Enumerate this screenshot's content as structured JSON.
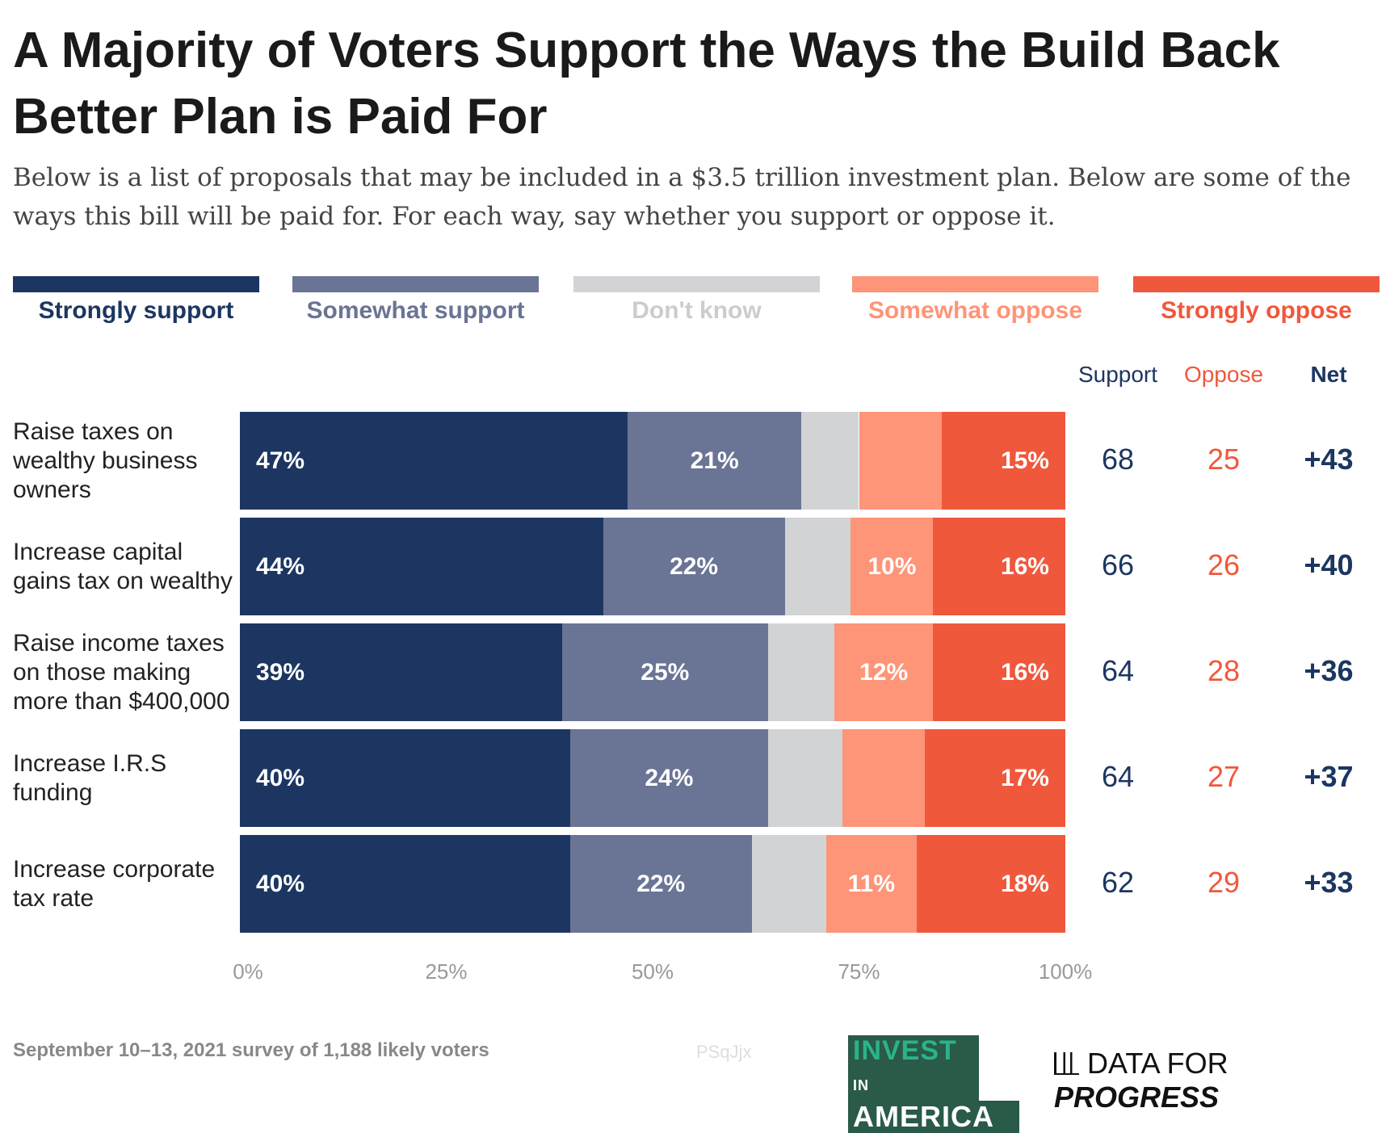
{
  "title": "A Majority of Voters Support the Ways the Build Back Better Plan is Paid For",
  "subtitle": "Below is a list of proposals that may be included in a $3.5 trillion investment plan. Below are some of the ways this bill will be paid for. For each way, say whether you support or oppose it.",
  "footer": "September 10–13, 2021 survey of 1,188 likely voters",
  "watermark": "PSqJjx",
  "logos": {
    "invest_in_america": "INVEST IN AMERICA",
    "data_for_progress": "DATA FOR PROGRESS"
  },
  "columns": {
    "support": "Support",
    "oppose": "Oppose",
    "net": "Net"
  },
  "chart_data": {
    "type": "bar",
    "orientation": "horizontal",
    "stacked": true,
    "legend_position": "top",
    "xlim": [
      0,
      100
    ],
    "xticks": [
      "0%",
      "25%",
      "50%",
      "75%",
      "100%"
    ],
    "categories": [
      "Raise taxes on wealthy business owners",
      "Increase capital gains tax on wealthy",
      "Raise income taxes on those making more than $400,000",
      "Increase I.R.S funding",
      "Increase corporate tax rate"
    ],
    "series": [
      {
        "name": "Strongly support",
        "color": "#1c3661",
        "values": [
          47,
          44,
          39,
          40,
          40
        ],
        "labels": [
          "47%",
          "44%",
          "39%",
          "40%",
          "40%"
        ]
      },
      {
        "name": "Somewhat support",
        "color": "#6a7494",
        "values": [
          21,
          22,
          25,
          24,
          22
        ],
        "labels": [
          "21%",
          "22%",
          "25%",
          "24%",
          "22%"
        ]
      },
      {
        "name": "Don't know",
        "color": "#d2d3d5",
        "values": [
          7,
          8,
          8,
          9,
          9
        ],
        "labels": [
          "",
          "",
          "",
          "",
          ""
        ]
      },
      {
        "name": "Somewhat oppose",
        "color": "#fe9478",
        "values": [
          10,
          10,
          12,
          10,
          11
        ],
        "labels": [
          "",
          "10%",
          "12%",
          "",
          "11%"
        ]
      },
      {
        "name": "Strongly oppose",
        "color": "#f0583c",
        "values": [
          15,
          16,
          16,
          17,
          18
        ],
        "labels": [
          "15%",
          "16%",
          "16%",
          "17%",
          "18%"
        ]
      }
    ],
    "table": {
      "support": [
        "68",
        "66",
        "64",
        "64",
        "62"
      ],
      "oppose": [
        "25",
        "26",
        "28",
        "27",
        "29"
      ],
      "net": [
        "+43",
        "+40",
        "+36",
        "+37",
        "+33"
      ]
    }
  }
}
